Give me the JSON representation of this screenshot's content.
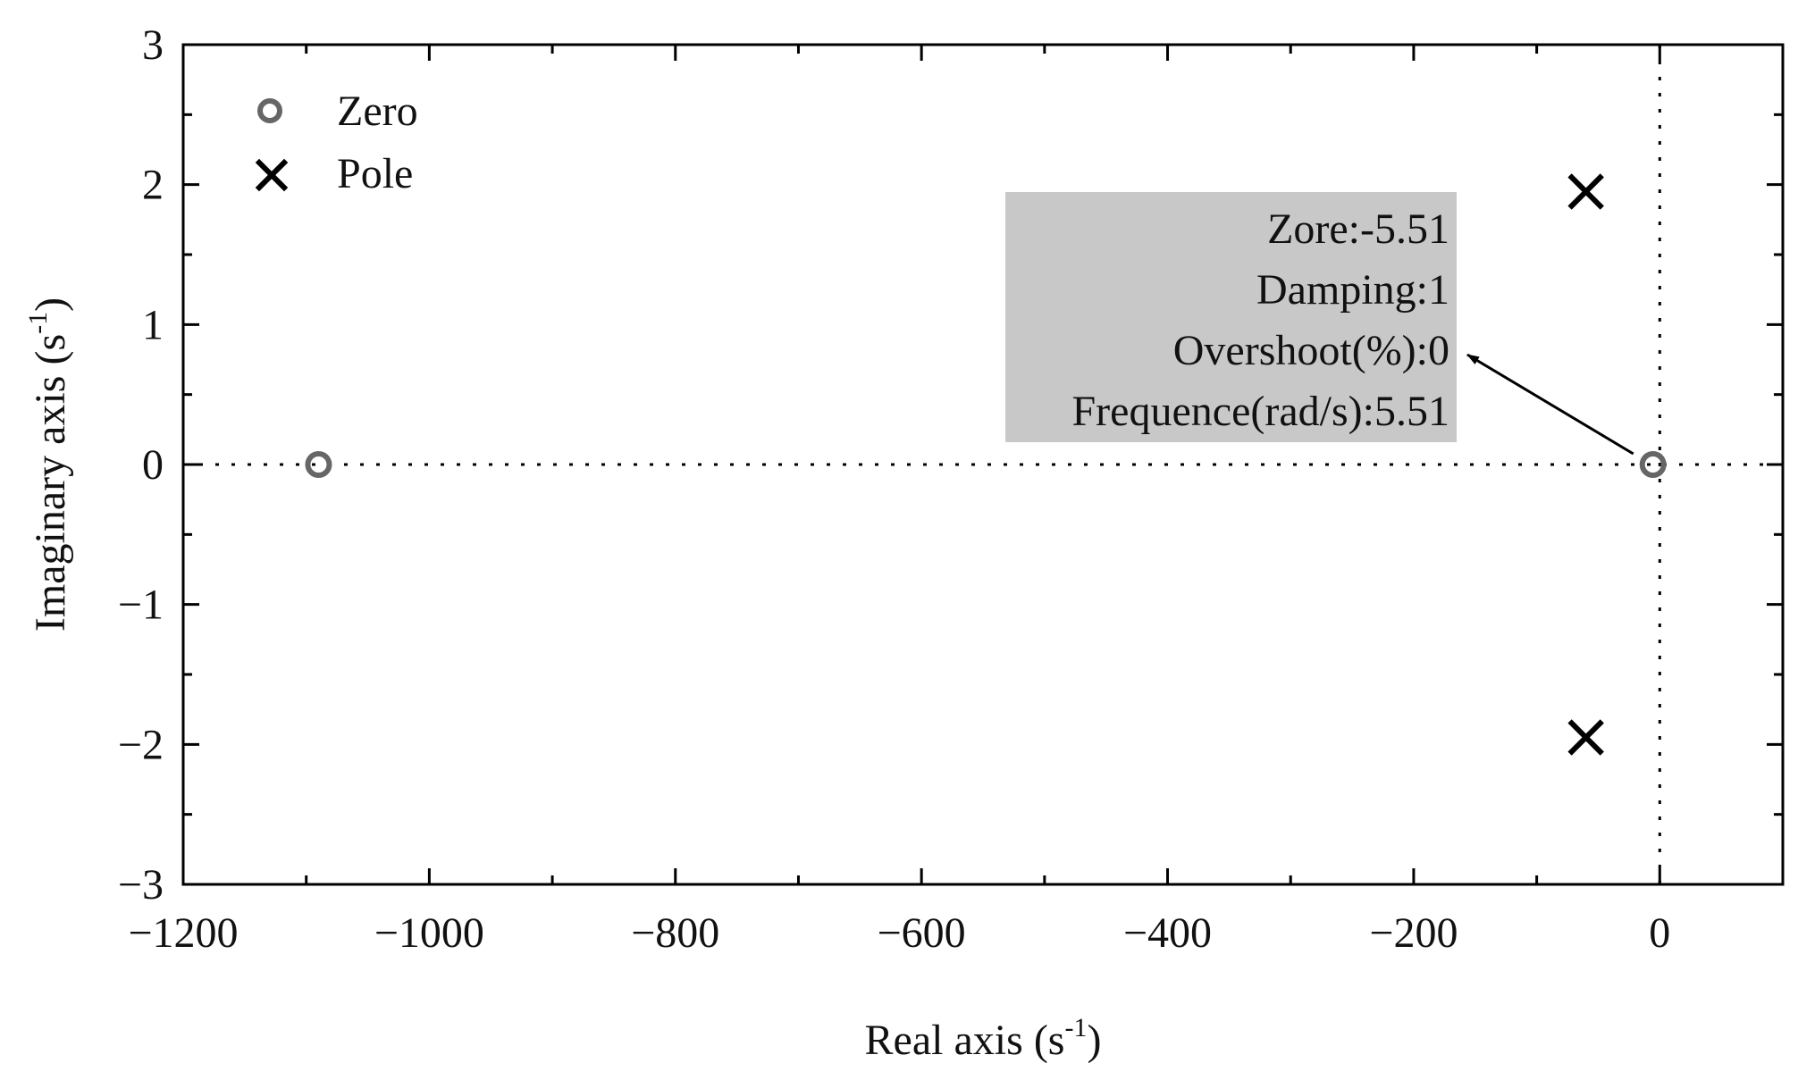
{
  "chart_data": {
    "type": "scatter",
    "xlabel": "Real axis (s",
    "xlabel_sup": "-1",
    "xlabel_end": ")",
    "ylabel": "Imaginary axis (s",
    "ylabel_sup": "-1",
    "ylabel_end": ")",
    "xlim": [
      -1200,
      100
    ],
    "ylim": [
      -3,
      3
    ],
    "x_ticks": [
      {
        "value": -1200,
        "label": "−1200"
      },
      {
        "value": -1000,
        "label": "−1000"
      },
      {
        "value": -800,
        "label": "−800"
      },
      {
        "value": -600,
        "label": "−600"
      },
      {
        "value": -400,
        "label": "−400"
      },
      {
        "value": -200,
        "label": "−200"
      },
      {
        "value": 0,
        "label": "0"
      }
    ],
    "x_minor_step": 100,
    "y_ticks": [
      {
        "value": 3,
        "label": "3"
      },
      {
        "value": 2,
        "label": "2"
      },
      {
        "value": 1,
        "label": "1"
      },
      {
        "value": 0,
        "label": "0"
      },
      {
        "value": -1,
        "label": "−1"
      },
      {
        "value": -2,
        "label": "−2"
      },
      {
        "value": -3,
        "label": "−3"
      }
    ],
    "y_minor_step": 0.5,
    "reference_lines": {
      "x": 0,
      "y": 0,
      "style": "dotted"
    },
    "legend_position": "top-left",
    "series": [
      {
        "name": "Zero",
        "marker": "circle",
        "color": "#666666",
        "points": [
          {
            "x": -1090,
            "y": 0
          },
          {
            "x": -5.51,
            "y": 0
          }
        ]
      },
      {
        "name": "Pole",
        "marker": "x",
        "color": "#000000",
        "points": [
          {
            "x": -60,
            "y": 1.95
          },
          {
            "x": -60,
            "y": -1.95
          }
        ]
      }
    ],
    "annotation": {
      "lines": [
        "Zore:-5.51",
        "Damping:1",
        "Overshoot(%):0",
        "Frequence(rad/s):5.51"
      ],
      "points_to": {
        "x": -5.51,
        "y": 0
      },
      "box_color": "#c8c8c8"
    }
  }
}
